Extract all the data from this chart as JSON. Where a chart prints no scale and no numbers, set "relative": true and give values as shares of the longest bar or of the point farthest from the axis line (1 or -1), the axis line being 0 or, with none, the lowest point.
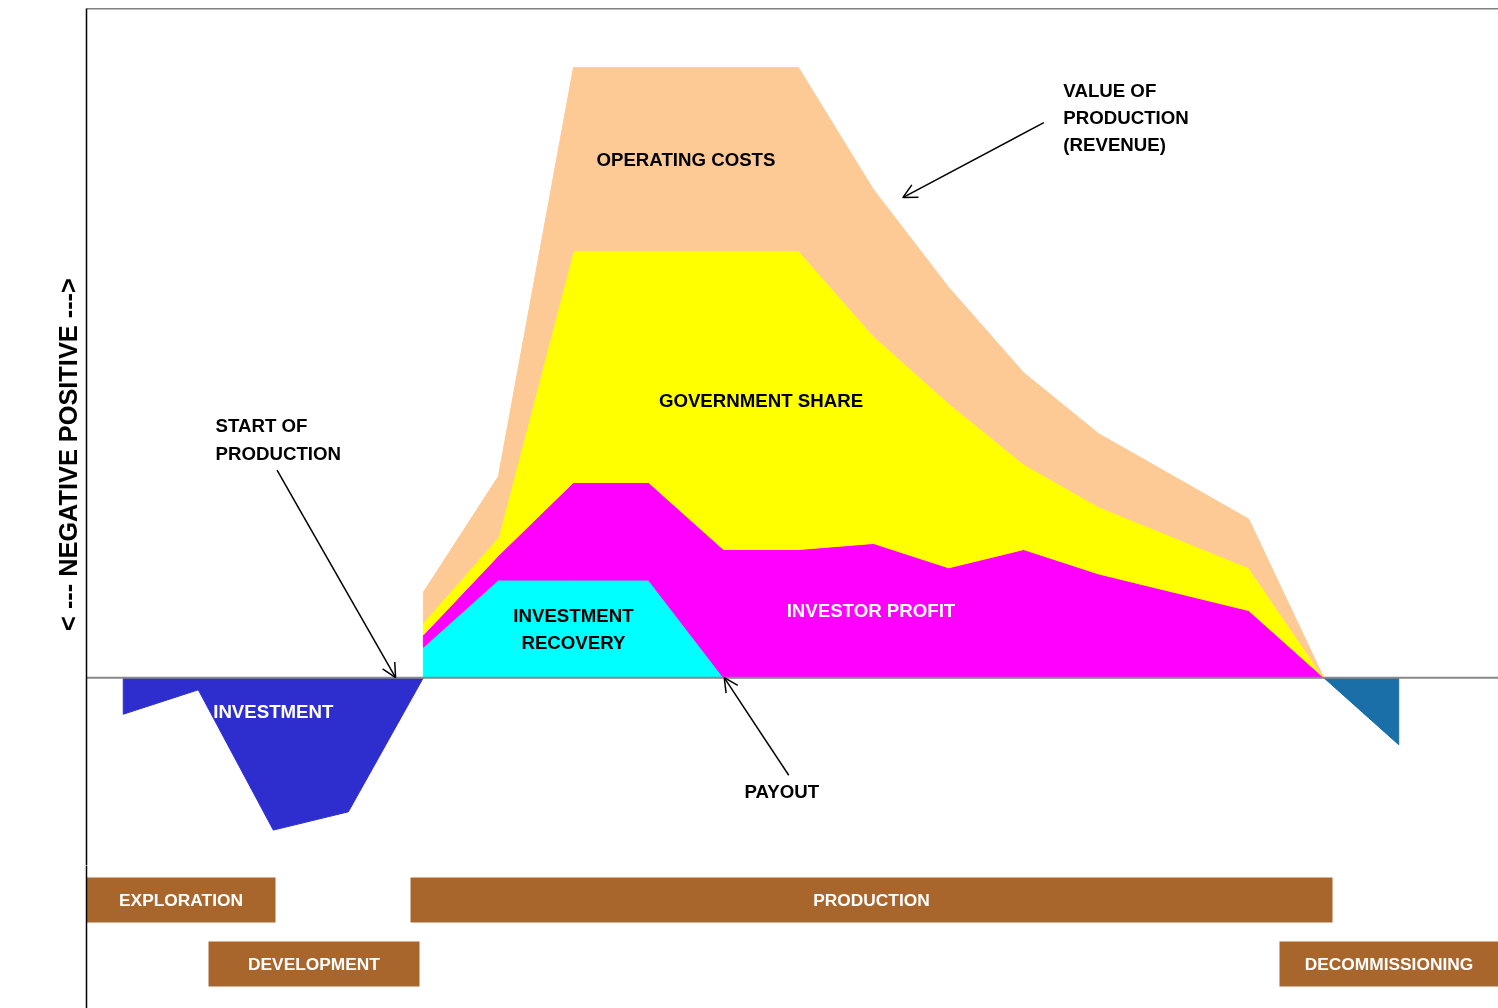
{
  "chart_data": [
    {
      "type": "area",
      "stacked": true,
      "relative": true,
      "legend": false,
      "grid": false,
      "ylabel": "< --- NEGATIVE      POSITIVE --->",
      "categories": [
        null,
        null,
        null,
        null,
        null,
        null,
        null,
        null,
        null,
        null,
        null,
        null,
        null,
        null,
        null,
        null,
        null,
        null
      ],
      "series": [
        {
          "name": "INVESTMENT",
          "color": "#2e2ecf",
          "values": [
            -0.06,
            -0.02,
            -0.25,
            -0.22,
            0,
            null,
            null,
            null,
            null,
            null,
            null,
            null,
            null,
            null,
            null,
            null,
            null,
            null
          ]
        },
        {
          "color": "#1a6fa8",
          "values": [
            null,
            null,
            null,
            null,
            null,
            null,
            null,
            null,
            null,
            null,
            null,
            null,
            null,
            null,
            null,
            null,
            0,
            -0.11
          ]
        },
        {
          "name": "INVESTMENT RECOVERY",
          "color": "#00ffff",
          "values": [
            null,
            null,
            null,
            null,
            0.05,
            0.16,
            0.16,
            0.16,
            0,
            0,
            0,
            0,
            0,
            0,
            0,
            0,
            0,
            null
          ]
        },
        {
          "name": "INVESTOR  PROFIT",
          "color": "#ff00ff",
          "values": [
            null,
            null,
            null,
            null,
            0.02,
            0.04,
            0.16,
            0.16,
            0.21,
            0.21,
            0.22,
            0.18,
            0.21,
            0.17,
            0.14,
            0.11,
            0,
            null
          ]
        },
        {
          "name": "GOVERNMENT SHARE",
          "color": "#ffff00",
          "values": [
            null,
            null,
            null,
            null,
            0.02,
            0.03,
            0.38,
            0.38,
            0.49,
            0.49,
            0.34,
            0.27,
            0.14,
            0.11,
            0.09,
            0.07,
            0,
            null
          ]
        },
        {
          "name": "OPERATING COSTS",
          "color": "#fdca96",
          "values": [
            null,
            null,
            null,
            null,
            0.05,
            0.1,
            0.3,
            0.3,
            0.3,
            0.3,
            0.24,
            0.19,
            0.15,
            0.12,
            0.1,
            0.08,
            0,
            null
          ]
        }
      ],
      "annotations": [
        "VALUE OF\nPRODUCTION\n(REVENUE)",
        "START OF\nPRODUCTION",
        "PAYOUT"
      ]
    },
    {
      "type": "other",
      "annotations": [
        "EXPLORATION",
        "DEVELOPMENT",
        "PRODUCTION",
        "DECOMMISSIONING"
      ]
    }
  ]
}
